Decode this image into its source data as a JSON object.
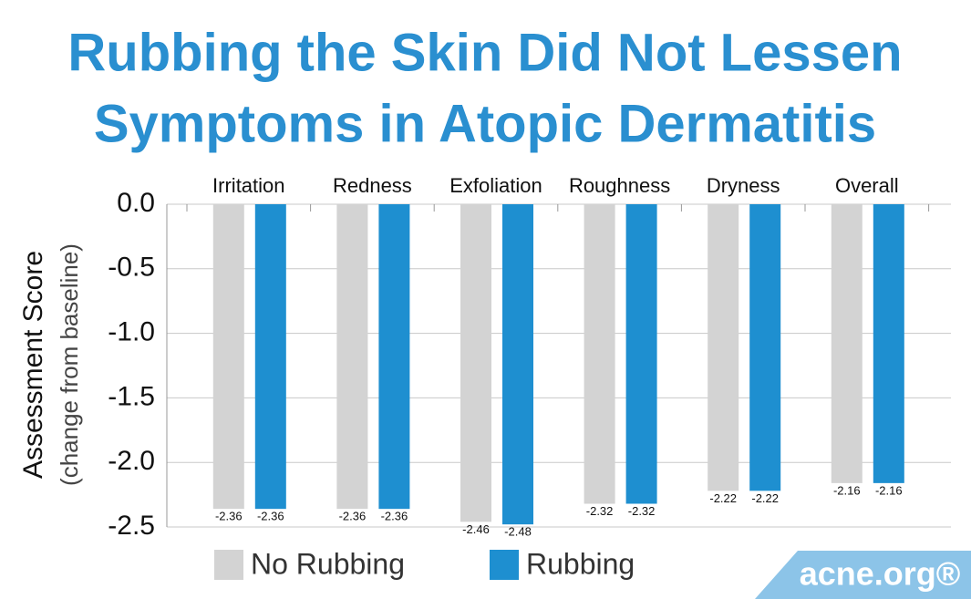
{
  "chart_data": {
    "type": "bar",
    "title": [
      "Rubbing the Skin Did Not Lessen",
      "Symptoms in Atopic Dermatitis"
    ],
    "y_label": [
      "Assessment Score",
      "(change from baseline)"
    ],
    "categories": [
      "Irritation",
      "Redness",
      "Exfoliation",
      "Roughness",
      "Dryness",
      "Overall"
    ],
    "series": [
      {
        "name": "No Rubbing",
        "color": "#d3d3d3",
        "values": [
          -2.36,
          -2.36,
          -2.46,
          -2.32,
          -2.22,
          -2.16
        ]
      },
      {
        "name": "Rubbing",
        "color": "#1e8fd0",
        "values": [
          -2.36,
          -2.36,
          -2.48,
          -2.32,
          -2.22,
          -2.16
        ]
      }
    ],
    "ylim": [
      0,
      -2.5
    ],
    "yticks": [
      {
        "value": 0,
        "label": "0.0"
      },
      -0.5,
      {
        "value": -1,
        "label": "-1.0"
      },
      -1.5,
      {
        "value": -2,
        "label": "-2.0"
      },
      -2.5
    ],
    "grid": true,
    "watermark": "acne.org®"
  }
}
